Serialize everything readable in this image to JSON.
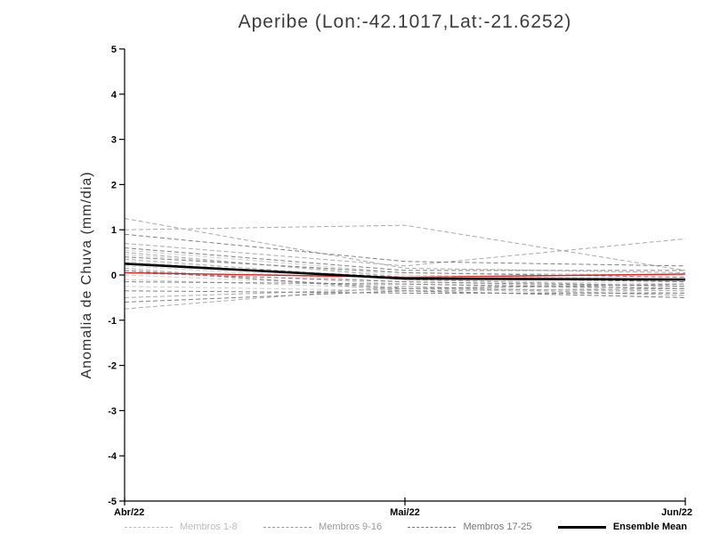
{
  "chart_data": {
    "type": "line",
    "title": "Aperibe (Lon:-42.1017,Lat:-21.6252)",
    "ylabel": "Anomalia de Chuva (mm/dia)",
    "xlabel": "",
    "x_categories": [
      "Abr/22",
      "Mai/22",
      "Jun/22"
    ],
    "ylim": [
      -5,
      5
    ],
    "yticks": [
      5,
      4,
      3,
      2,
      1,
      0,
      -1,
      -2,
      -3,
      -4,
      -5
    ],
    "grid": false,
    "legend_position": "bottom",
    "groups": [
      {
        "id": "membros-1-8",
        "name": "Membros 1-8",
        "color": "#cccccc",
        "dashed": true,
        "width": 1,
        "members": [
          [
            0.45,
            0.0,
            -0.1
          ],
          [
            0.3,
            -0.1,
            -0.2
          ],
          [
            0.2,
            -0.15,
            -0.3
          ],
          [
            0.1,
            -0.2,
            -0.35
          ],
          [
            0.0,
            -0.25,
            -0.4
          ],
          [
            -0.1,
            -0.3,
            -0.45
          ],
          [
            -0.25,
            -0.35,
            -0.5
          ],
          [
            0.55,
            0.05,
            0.0
          ]
        ]
      },
      {
        "id": "membros-9-16",
        "name": "Membros 9-16",
        "color": "#aaaaaa",
        "dashed": true,
        "width": 1,
        "members": [
          [
            0.7,
            0.2,
            0.8
          ],
          [
            1.0,
            1.1,
            0.1
          ],
          [
            1.25,
            0.15,
            0.05
          ],
          [
            0.5,
            -0.05,
            -0.15
          ],
          [
            0.35,
            -0.1,
            -0.25
          ],
          [
            -0.5,
            -0.3,
            -0.35
          ],
          [
            -0.75,
            -0.25,
            -0.45
          ],
          [
            0.15,
            -0.35,
            -0.3
          ]
        ]
      },
      {
        "id": "membros-17-25",
        "name": "Membros 17-25",
        "color": "#808080",
        "dashed": true,
        "width": 1,
        "members": [
          [
            0.6,
            0.1,
            0.1
          ],
          [
            0.4,
            0.05,
            -0.05
          ],
          [
            0.25,
            -0.05,
            -0.15
          ],
          [
            0.05,
            -0.15,
            -0.25
          ],
          [
            -0.15,
            -0.2,
            -0.3
          ],
          [
            -0.35,
            -0.4,
            -0.4
          ],
          [
            -0.6,
            -0.35,
            -0.5
          ],
          [
            0.9,
            0.3,
            0.2
          ],
          [
            0.1,
            -0.3,
            -0.2
          ]
        ]
      },
      {
        "id": "red-line",
        "name": "Red Line",
        "color": "#e02020",
        "dashed": false,
        "width": 1.4,
        "members": [
          [
            0.05,
            -0.05,
            0.02
          ]
        ]
      },
      {
        "id": "ensemble-mean",
        "name": "Ensemble Mean",
        "color": "#000000",
        "dashed": false,
        "width": 2.6,
        "members": [
          [
            0.25,
            -0.08,
            -0.1
          ]
        ]
      }
    ]
  },
  "legend": {
    "items": [
      {
        "label": "Membros 1-8",
        "color": "#bbbbbb",
        "dashed": true,
        "bold": false
      },
      {
        "label": "Membros 9-16",
        "color": "#999999",
        "dashed": true,
        "bold": false
      },
      {
        "label": "Membros 17-25",
        "color": "#777777",
        "dashed": true,
        "bold": false
      },
      {
        "label": "Ensemble Mean",
        "color": "#000000",
        "dashed": false,
        "bold": true
      }
    ]
  }
}
